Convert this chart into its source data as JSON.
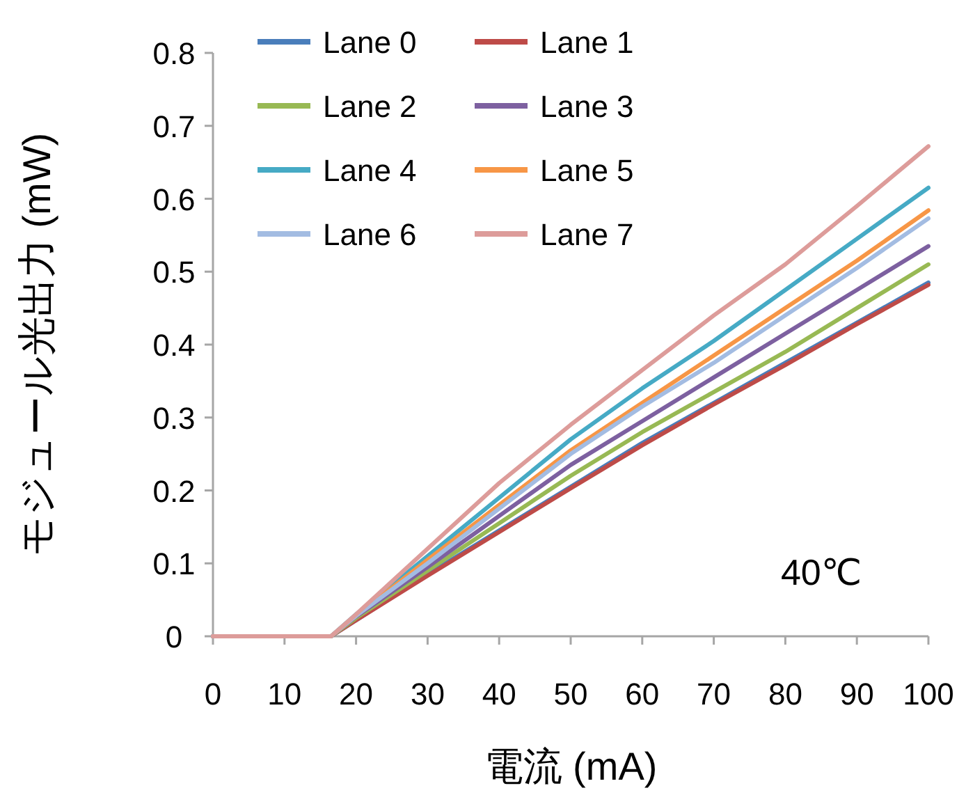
{
  "chart_data": {
    "type": "line",
    "xlabel": "電流 (mA)",
    "ylabel": "モジュール光出力 (mW)",
    "annotations": [
      "40℃"
    ],
    "x": [
      0,
      16.5,
      20,
      30,
      40,
      50,
      60,
      70,
      80,
      90,
      100
    ],
    "xlim": [
      0,
      100
    ],
    "xticks": [
      0,
      10,
      20,
      30,
      40,
      50,
      60,
      70,
      80,
      90,
      100
    ],
    "ylim": [
      0,
      0.8
    ],
    "yticks": [
      0,
      0.1,
      0.2,
      0.3,
      0.4,
      0.5,
      0.6,
      0.7,
      0.8
    ],
    "grid": false,
    "legend": "top left",
    "marker": "none",
    "line_style": "solid",
    "series": [
      {
        "name": "Lane 0",
        "color": "#4a7ebb",
        "values": [
          0,
          0,
          0.022,
          0.085,
          0.145,
          0.205,
          0.265,
          0.32,
          0.375,
          0.43,
          0.485
        ]
      },
      {
        "name": "Lane 1",
        "color": "#be4b48",
        "values": [
          0,
          0,
          0.022,
          0.083,
          0.143,
          0.203,
          0.262,
          0.318,
          0.372,
          0.428,
          0.482
        ]
      },
      {
        "name": "Lane 2",
        "color": "#98b954",
        "values": [
          0,
          0,
          0.025,
          0.09,
          0.155,
          0.22,
          0.28,
          0.335,
          0.39,
          0.45,
          0.51
        ]
      },
      {
        "name": "Lane 3",
        "color": "#7d60a0",
        "values": [
          0,
          0,
          0.027,
          0.095,
          0.165,
          0.235,
          0.295,
          0.355,
          0.415,
          0.475,
          0.535
        ]
      },
      {
        "name": "Lane 4",
        "color": "#46aac5",
        "values": [
          0,
          0,
          0.03,
          0.11,
          0.19,
          0.27,
          0.34,
          0.405,
          0.475,
          0.545,
          0.615
        ]
      },
      {
        "name": "Lane 5",
        "color": "#f79646",
        "values": [
          0,
          0,
          0.028,
          0.105,
          0.18,
          0.255,
          0.32,
          0.385,
          0.45,
          0.515,
          0.584
        ]
      },
      {
        "name": "Lane 6",
        "color": "#a3bce2",
        "values": [
          0,
          0,
          0.028,
          0.1,
          0.175,
          0.25,
          0.315,
          0.375,
          0.44,
          0.505,
          0.573
        ]
      },
      {
        "name": "Lane 7",
        "color": "#dd9c9a",
        "values": [
          0,
          0,
          0.03,
          0.12,
          0.21,
          0.29,
          0.365,
          0.44,
          0.51,
          0.59,
          0.672
        ]
      }
    ]
  }
}
